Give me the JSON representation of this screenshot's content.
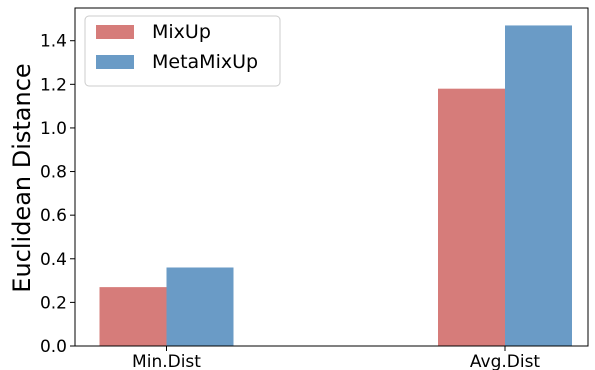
{
  "chart_data": {
    "type": "bar",
    "title": "",
    "xlabel": "",
    "ylabel": "Euclidean Distance",
    "categories": [
      "Min.Dist",
      "Avg.Dist"
    ],
    "series": [
      {
        "name": "MixUp",
        "values": [
          0.27,
          1.18
        ],
        "color": "#d67c7a"
      },
      {
        "name": "MetaMixUp",
        "values": [
          0.36,
          1.47
        ],
        "color": "#6a9bc6"
      }
    ],
    "ylim": [
      0.0,
      1.55
    ],
    "yticks": [
      "0.0",
      "0.2",
      "0.4",
      "0.6",
      "0.8",
      "1.0",
      "1.2",
      "1.4"
    ],
    "grid": false,
    "legend_position": "top-left"
  }
}
